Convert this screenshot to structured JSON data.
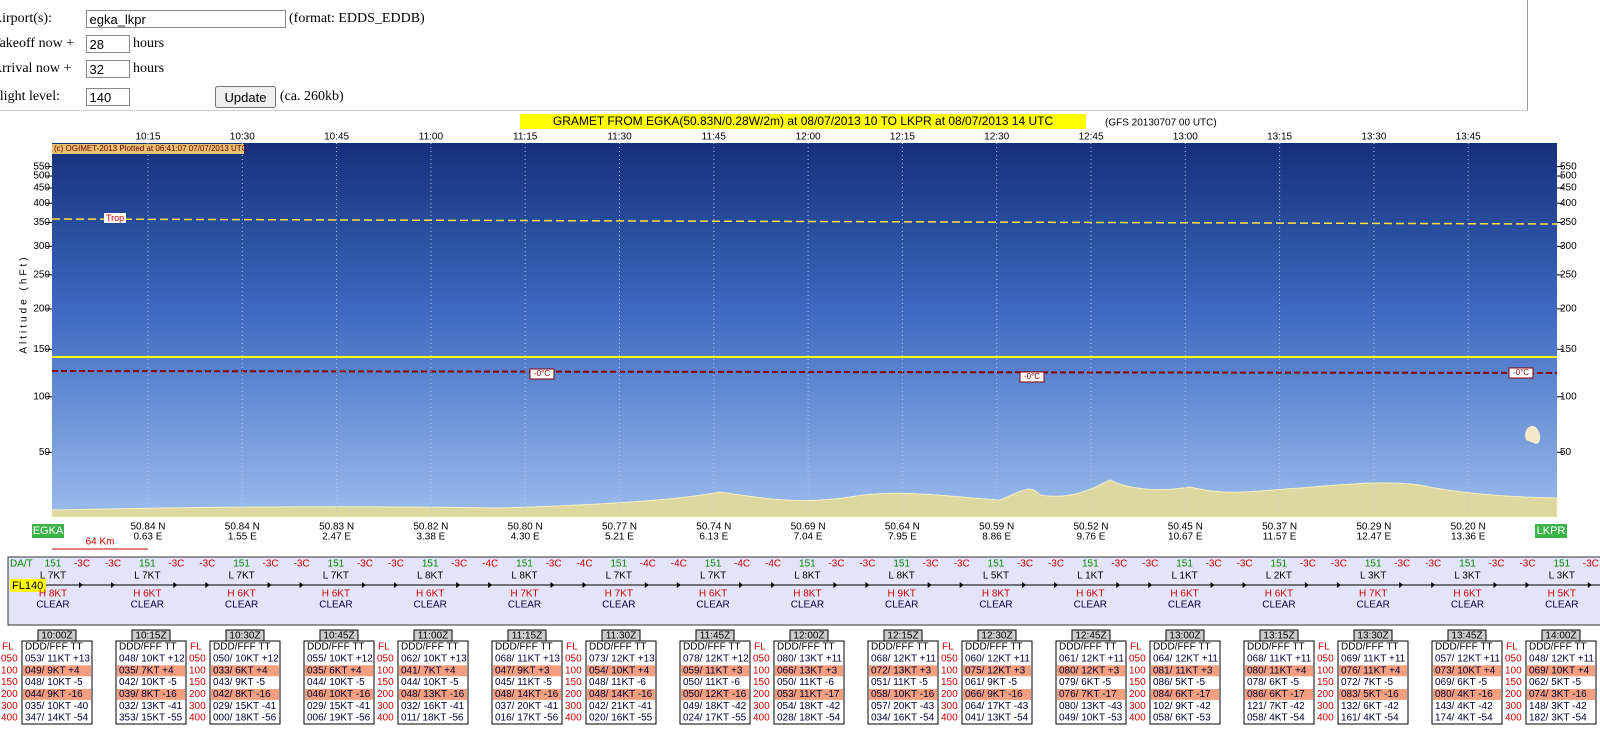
{
  "form": {
    "airport": {
      "label": "Airport(s):",
      "value": "egka_lkpr",
      "hint": "(format: EDDS_EDDB)"
    },
    "takeoff": {
      "label": "Takeoff now +",
      "value": "28",
      "unit": "hours"
    },
    "arrival": {
      "label": "Arrival now +",
      "value": "32",
      "unit": "hours"
    },
    "flight_level": {
      "label": "Flight level:",
      "value": "140"
    },
    "button": "Update",
    "size_note": "(ca. 260kb)"
  },
  "gramet": {
    "title": "GRAMET FROM EGKA(50.83N/0.28W/2m) at 08/07/2013 10   TO   LKPR at 08/07/2013 14 UTC",
    "model": "(GFS 20130707 00 UTC)",
    "copyright": "(c) OGIMET-2013 Plotted at 06:41:07 07/07/2013 UTC",
    "y_label": "Altitude (hFt)",
    "yticks": [
      50,
      100,
      150,
      200,
      250,
      300,
      350,
      400,
      450,
      500,
      550
    ],
    "times": [
      "10:15",
      "10:30",
      "10:45",
      "11:00",
      "11:15",
      "11:30",
      "11:45",
      "12:00",
      "12:15",
      "12:30",
      "12:45",
      "13:00",
      "13:15",
      "13:30",
      "13:45"
    ],
    "trop_label": "Trop",
    "freezing_label": "-0°C",
    "departure": "EGKA",
    "destination": "LKPR",
    "scale": "64 Km",
    "locations": [
      [
        "50.84 N",
        "0.63 E"
      ],
      [
        "50.84 N",
        "1.55 E"
      ],
      [
        "50.83 N",
        "2.47 E"
      ],
      [
        "50.82 N",
        "3.38 E"
      ],
      [
        "50.80 N",
        "4.30 E"
      ],
      [
        "50.77 N",
        "5.21 E"
      ],
      [
        "50.74 N",
        "6.13 E"
      ],
      [
        "50.69 N",
        "7.04 E"
      ],
      [
        "50.64 N",
        "7.95 E"
      ],
      [
        "50.59 N",
        "8.86 E"
      ],
      [
        "50.52 N",
        "9.76 E"
      ],
      [
        "50.45 N",
        "10.67 E"
      ],
      [
        "50.37 N",
        "11.57 E"
      ],
      [
        "50.29 N",
        "12.47 E"
      ],
      [
        "50.20 N",
        "13.36 E"
      ]
    ]
  },
  "strip": {
    "da_label": "DA/T",
    "fl_label": "FL140",
    "columns": [
      {
        "da": "151",
        "t1": "-3C",
        "t2": "-3C",
        "low": "L 7KT",
        "high": "H 8KT",
        "cloud": "CLEAR"
      },
      {
        "da": "151",
        "t1": "-3C",
        "t2": "-3C",
        "low": "L 7KT",
        "high": "H 6KT",
        "cloud": "CLEAR"
      },
      {
        "da": "151",
        "t1": "-3C",
        "t2": "-3C",
        "low": "L 7KT",
        "high": "H 6KT",
        "cloud": "CLEAR"
      },
      {
        "da": "151",
        "t1": "-3C",
        "t2": "-3C",
        "low": "L 7KT",
        "high": "H 6KT",
        "cloud": "CLEAR"
      },
      {
        "da": "151",
        "t1": "-3C",
        "t2": "-4C",
        "low": "L 8KT",
        "high": "H 6KT",
        "cloud": "CLEAR"
      },
      {
        "da": "151",
        "t1": "-3C",
        "t2": "-4C",
        "low": "L 8KT",
        "high": "H 7KT",
        "cloud": "CLEAR"
      },
      {
        "da": "151",
        "t1": "-4C",
        "t2": "-4C",
        "low": "L 7KT",
        "high": "H 7KT",
        "cloud": "CLEAR"
      },
      {
        "da": "151",
        "t1": "-4C",
        "t2": "-4C",
        "low": "L 7KT",
        "high": "H 6KT",
        "cloud": "CLEAR"
      },
      {
        "da": "151",
        "t1": "-3C",
        "t2": "-3C",
        "low": "L 8KT",
        "high": "H 8KT",
        "cloud": "CLEAR"
      },
      {
        "da": "151",
        "t1": "-3C",
        "t2": "-3C",
        "low": "L 8KT",
        "high": "H 9KT",
        "cloud": "CLEAR"
      },
      {
        "da": "151",
        "t1": "-3C",
        "t2": "-3C",
        "low": "L 5KT",
        "high": "H 8KT",
        "cloud": "CLEAR"
      },
      {
        "da": "151",
        "t1": "-3C",
        "t2": "-3C",
        "low": "L 1KT",
        "high": "H 6KT",
        "cloud": "CLEAR"
      },
      {
        "da": "151",
        "t1": "-3C",
        "t2": "-3C",
        "low": "L 1KT",
        "high": "H 6KT",
        "cloud": "CLEAR"
      },
      {
        "da": "151",
        "t1": "-3C",
        "t2": "-3C",
        "low": "L 2KT",
        "high": "H 6KT",
        "cloud": "CLEAR"
      },
      {
        "da": "151",
        "t1": "-3C",
        "t2": "-3C",
        "low": "L 3KT",
        "high": "H 7KT",
        "cloud": "CLEAR"
      },
      {
        "da": "151",
        "t1": "-3C",
        "t2": "-3C",
        "low": "L 3KT",
        "high": "H 6KT",
        "cloud": "CLEAR"
      },
      {
        "da": "151",
        "t1": "-3C",
        "t2": "-3C",
        "low": "L 3KT",
        "high": "H 5KT",
        "cloud": "CLEAR"
      }
    ]
  },
  "tables": {
    "fl_header": "FL",
    "levels": [
      "050",
      "100",
      "150",
      "200",
      "300",
      "400"
    ],
    "header": "DDD/FFF TT",
    "items": [
      {
        "time": "10:00Z",
        "rows": [
          "053/ 11KT +13",
          "049/ 9KT +4",
          "048/ 10KT -5",
          "044/ 9KT -16",
          "035/ 10KT -40",
          "347/ 14KT -54"
        ]
      },
      {
        "time": "10:15Z",
        "rows": [
          "048/ 10KT +12",
          "035/ 7KT +4",
          "042/ 10KT -5",
          "039/ 8KT -16",
          "032/ 13KT -41",
          "353/ 15KT -55"
        ]
      },
      {
        "time": "10:30Z",
        "rows": [
          "050/ 10KT +12",
          "033/ 6KT +4",
          "043/ 9KT -5",
          "042/ 8KT -16",
          "029/ 15KT -41",
          "000/ 18KT -56"
        ]
      },
      {
        "time": "10:45Z",
        "rows": [
          "055/ 10KT +12",
          "035/ 6KT +4",
          "044/ 10KT -5",
          "046/ 10KT -16",
          "029/ 15KT -41",
          "006/ 19KT -56"
        ]
      },
      {
        "time": "11:00Z",
        "rows": [
          "062/ 10KT +13",
          "041/ 7KT +4",
          "044/ 10KT -5",
          "048/ 13KT -16",
          "032/ 16KT -41",
          "011/ 18KT -56"
        ]
      },
      {
        "time": "11:15Z",
        "rows": [
          "068/ 11KT +13",
          "047/ 9KT +3",
          "045/ 11KT -5",
          "048/ 14KT -16",
          "037/ 20KT -41",
          "016/ 17KT -56"
        ]
      },
      {
        "time": "11:30Z",
        "rows": [
          "073/ 12KT +13",
          "054/ 10KT +4",
          "048/ 11KT -6",
          "048/ 14KT -16",
          "042/ 21KT -41",
          "020/ 16KT -55"
        ]
      },
      {
        "time": "11:45Z",
        "rows": [
          "078/ 12KT +12",
          "059/ 11KT +3",
          "050/ 11KT -6",
          "050/ 12KT -16",
          "049/ 18KT -42",
          "024/ 17KT -55"
        ]
      },
      {
        "time": "12:00Z",
        "rows": [
          "080/ 13KT +11",
          "066/ 13KT +3",
          "050/ 11KT -6",
          "053/ 11KT -17",
          "054/ 18KT -42",
          "028/ 18KT -54"
        ]
      },
      {
        "time": "12:15Z",
        "rows": [
          "068/ 12KT +11",
          "072/ 13KT +3",
          "051/ 11KT -5",
          "058/ 10KT -16",
          "057/ 20KT -43",
          "034/ 16KT -54"
        ]
      },
      {
        "time": "12:30Z",
        "rows": [
          "060/ 12KT +11",
          "075/ 12KT +3",
          "061/ 9KT -5",
          "066/ 9KT -16",
          "064/ 17KT -43",
          "041/ 13KT -54"
        ]
      },
      {
        "time": "12:45Z",
        "rows": [
          "061/ 12KT +11",
          "080/ 12KT +3",
          "079/ 6KT -5",
          "076/ 7KT -17",
          "080/ 13KT -43",
          "049/ 10KT -53"
        ]
      },
      {
        "time": "13:00Z",
        "rows": [
          "064/ 12KT +11",
          "081/ 11KT +3",
          "086/ 5KT -5",
          "084/ 6KT -17",
          "102/ 9KT -42",
          "058/ 6KT -53"
        ]
      },
      {
        "time": "13:15Z",
        "rows": [
          "068/ 11KT +11",
          "080/ 11KT +4",
          "078/ 6KT -5",
          "086/ 6KT -17",
          "121/ 7KT -42",
          "058/ 4KT -54"
        ]
      },
      {
        "time": "13:30Z",
        "rows": [
          "069/ 11KT +11",
          "076/ 11KT +4",
          "072/ 7KT -5",
          "083/ 5KT -16",
          "132/ 6KT -42",
          "161/ 4KT -54"
        ]
      },
      {
        "time": "13:45Z",
        "rows": [
          "057/ 12KT +11",
          "073/ 10KT +4",
          "069/ 6KT -5",
          "080/ 4KT -16",
          "143/ 4KT -42",
          "174/ 4KT -54"
        ]
      },
      {
        "time": "14:00Z",
        "rows": [
          "048/ 12KT +11",
          "069/ 10KT +4",
          "062/ 5KT -5",
          "074/ 3KT -16",
          "148/ 3KT -42",
          "182/ 3KT -54"
        ]
      }
    ]
  }
}
